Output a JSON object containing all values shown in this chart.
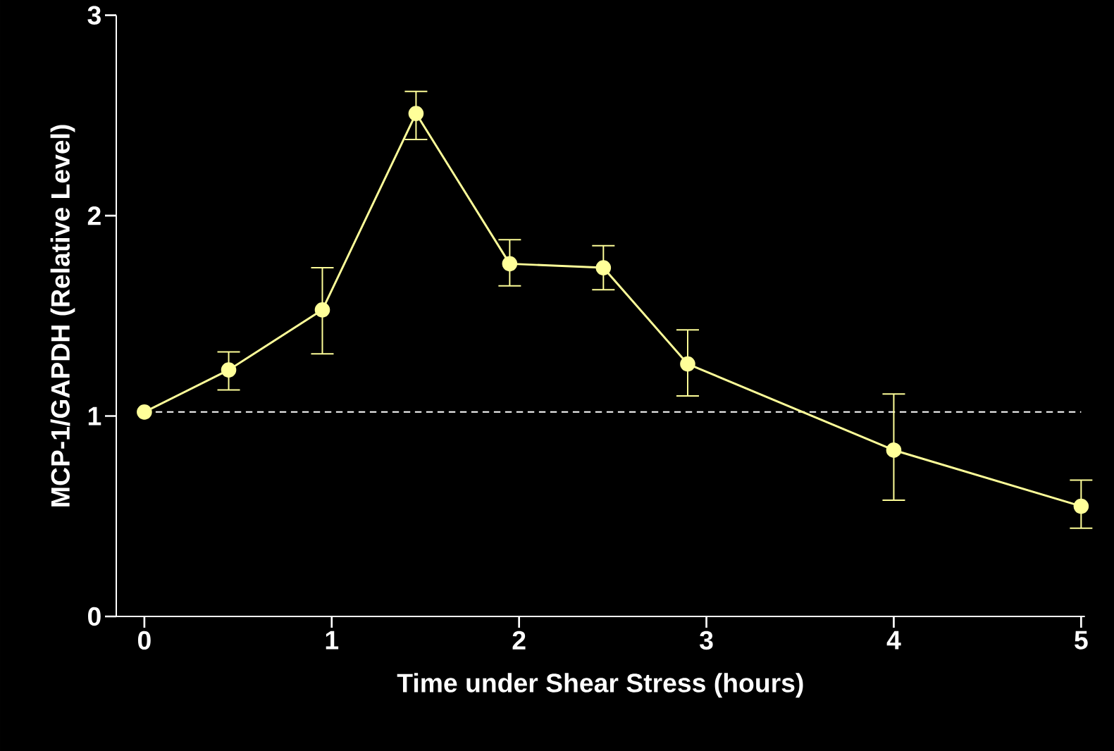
{
  "chart_data": {
    "type": "line",
    "xlabel": "Time under Shear Stress (hours)",
    "ylabel": "MCP-1/GAPDH (Relative Level)",
    "x": [
      0,
      0.45,
      0.95,
      1.45,
      1.95,
      2.45,
      2.9,
      4.0,
      5.0
    ],
    "series": [
      {
        "color": "#ffff99",
        "values": [
          1.02,
          1.23,
          1.53,
          2.51,
          1.76,
          1.74,
          1.26,
          0.83,
          0.55
        ],
        "errors": [
          null,
          [
            1.13,
            1.32
          ],
          [
            1.31,
            1.74
          ],
          [
            2.38,
            2.62
          ],
          [
            1.65,
            1.88
          ],
          [
            1.63,
            1.85
          ],
          [
            1.1,
            1.43
          ],
          [
            0.58,
            1.11
          ],
          [
            0.44,
            0.68
          ]
        ]
      }
    ],
    "xlim": [
      -0.15,
      5.02
    ],
    "ylim": [
      0,
      3
    ],
    "xticks": [
      0,
      1,
      2,
      3,
      4,
      5
    ],
    "yticks": [
      0,
      1,
      2,
      3
    ],
    "ref_lines": [
      {
        "axis": "y",
        "value": 1.02,
        "color": "#ffffff",
        "line_style": "dashed"
      }
    ],
    "grid": false,
    "marker": "circle",
    "line_style": "solid"
  }
}
